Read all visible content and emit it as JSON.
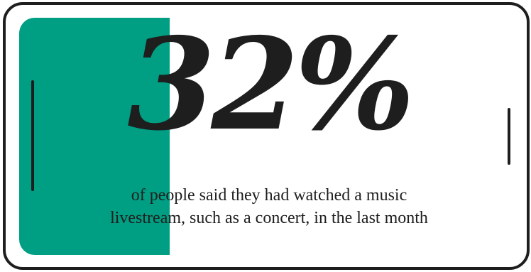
{
  "stat": {
    "value": "32%"
  },
  "caption": {
    "line1": "of people said they had watched a music",
    "line2": "livestream, such as a concert, in the last month"
  },
  "colors": {
    "accent": "#009e82",
    "ink": "#1e1e1e",
    "background": "#ffffff"
  }
}
